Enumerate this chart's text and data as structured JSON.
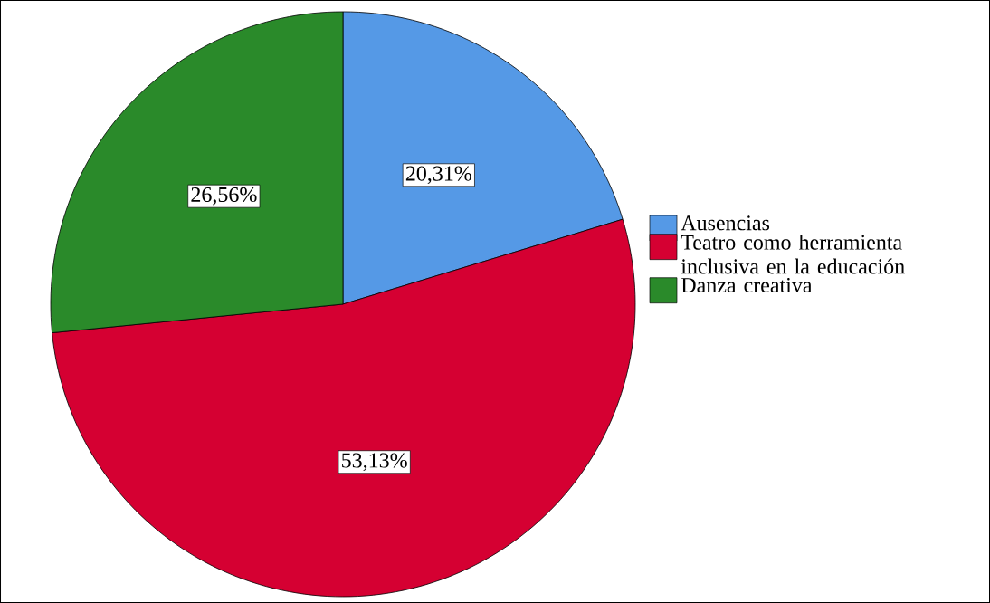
{
  "chart_data": {
    "type": "pie",
    "categories": [
      "Ausencias",
      "Teatro como herramienta inclusiva en la educación",
      "Danza creativa"
    ],
    "values": [
      20.31,
      53.13,
      26.56
    ],
    "value_labels": [
      "20,31%",
      "53,13%",
      "26,56%"
    ],
    "colors": [
      "#5599e6",
      "#d50032",
      "#2a8a2a"
    ],
    "legend": "right"
  }
}
